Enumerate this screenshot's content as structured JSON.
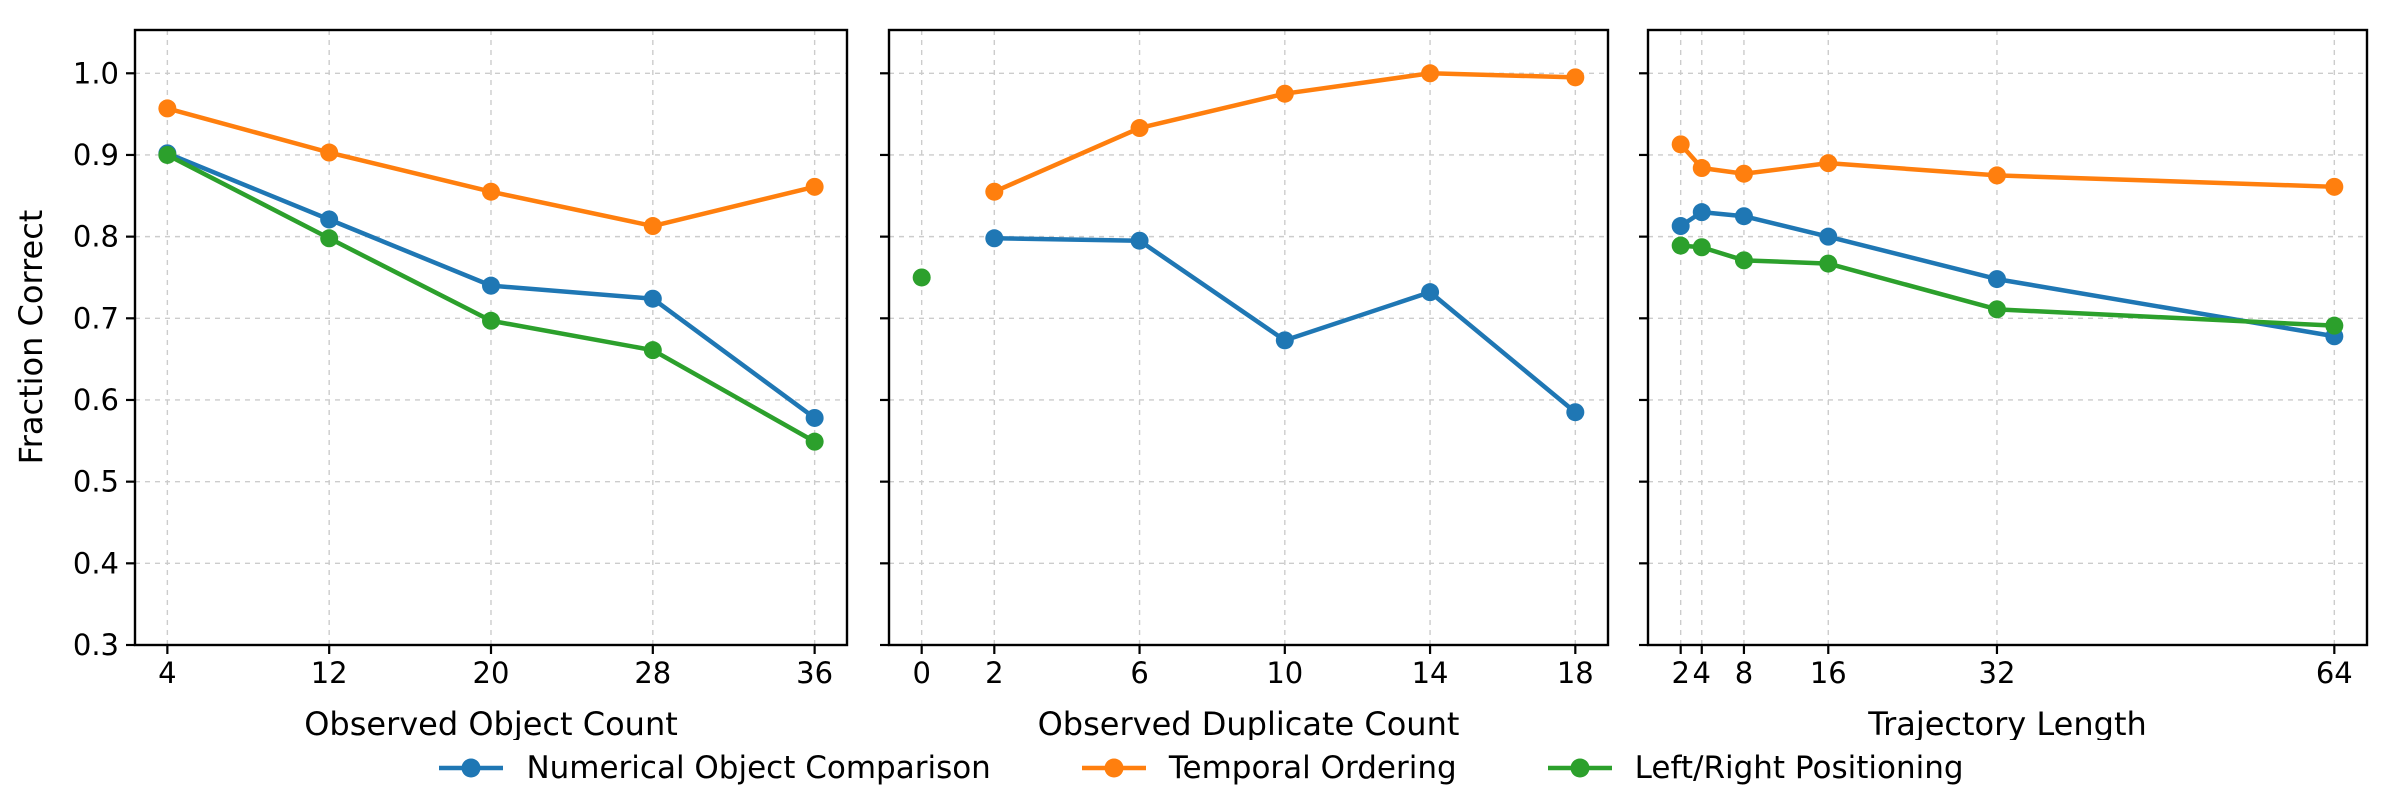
{
  "figure": {
    "ylabel": "Fraction Correct",
    "background_color": "#ffffff",
    "axis_color": "#000000",
    "grid_color": "#cccccc",
    "text_color": "#000000"
  },
  "legend": {
    "position": "bottom center",
    "items": [
      {
        "label": "Numerical Object Comparison",
        "color": "#1f77b4",
        "marker": "circle"
      },
      {
        "label": "Temporal Ordering",
        "color": "#ff7f0e",
        "marker": "circle"
      },
      {
        "label": "Left/Right Positioning",
        "color": "#2ca02c",
        "marker": "circle"
      }
    ]
  },
  "chart_data": [
    {
      "type": "line",
      "title": "",
      "xlabel": "Observed Object Count",
      "ylabel": "Fraction Correct",
      "xticks": [
        4,
        12,
        20,
        28,
        36
      ],
      "yticks": [
        1.0,
        0.9,
        0.8,
        0.7,
        0.6,
        0.5,
        0.4,
        0.3
      ],
      "xlim": [
        2.4,
        37.6
      ],
      "ylim": [
        0.3,
        1.053
      ],
      "grid": true,
      "show_ytick_labels": true,
      "series": [
        {
          "name": "Numerical Object Comparison",
          "color": "#1f77b4",
          "marker": "circle",
          "x": [
            4,
            12,
            20,
            28,
            36
          ],
          "y": [
            0.902,
            0.821,
            0.74,
            0.724,
            0.578
          ]
        },
        {
          "name": "Temporal Ordering",
          "color": "#ff7f0e",
          "marker": "circle",
          "x": [
            4,
            12,
            20,
            28,
            36
          ],
          "y": [
            0.957,
            0.903,
            0.855,
            0.813,
            0.861
          ]
        },
        {
          "name": "Left/Right Positioning",
          "color": "#2ca02c",
          "marker": "circle",
          "x": [
            4,
            12,
            20,
            28,
            36
          ],
          "y": [
            0.9,
            0.798,
            0.697,
            0.661,
            0.549
          ]
        }
      ]
    },
    {
      "type": "line",
      "title": "",
      "xlabel": "Observed Duplicate Count",
      "ylabel": "",
      "xticks": [
        0,
        2,
        6,
        10,
        14,
        18
      ],
      "yticks": [
        1.0,
        0.9,
        0.8,
        0.7,
        0.6,
        0.5,
        0.4,
        0.3
      ],
      "xlim": [
        -0.9,
        18.9
      ],
      "ylim": [
        0.3,
        1.053
      ],
      "grid": true,
      "show_ytick_labels": false,
      "series": [
        {
          "name": "Numerical Object Comparison",
          "color": "#1f77b4",
          "marker": "circle",
          "x": [
            2,
            6,
            10,
            14,
            18
          ],
          "y": [
            0.798,
            0.795,
            0.673,
            0.732,
            0.585
          ]
        },
        {
          "name": "Temporal Ordering",
          "color": "#ff7f0e",
          "marker": "circle",
          "x": [
            2,
            6,
            10,
            14,
            18
          ],
          "y": [
            0.855,
            0.933,
            0.975,
            1.0,
            0.995
          ]
        },
        {
          "name": "Left/Right Positioning",
          "color": "#2ca02c",
          "marker": "circle",
          "x": [
            0
          ],
          "y": [
            0.75
          ]
        }
      ]
    },
    {
      "type": "line",
      "title": "",
      "xlabel": "Trajectory Length",
      "ylabel": "",
      "xticks": [
        2,
        4,
        8,
        16,
        32,
        64
      ],
      "yticks": [
        1.0,
        0.9,
        0.8,
        0.7,
        0.6,
        0.5,
        0.4,
        0.3
      ],
      "xlim": [
        -1.1,
        67.1
      ],
      "ylim": [
        0.3,
        1.053
      ],
      "grid": true,
      "show_ytick_labels": false,
      "series": [
        {
          "name": "Numerical Object Comparison",
          "color": "#1f77b4",
          "marker": "circle",
          "x": [
            2,
            4,
            8,
            16,
            32,
            64
          ],
          "y": [
            0.813,
            0.83,
            0.825,
            0.8,
            0.748,
            0.678
          ]
        },
        {
          "name": "Temporal Ordering",
          "color": "#ff7f0e",
          "marker": "circle",
          "x": [
            2,
            4,
            8,
            16,
            32,
            64
          ],
          "y": [
            0.913,
            0.884,
            0.877,
            0.89,
            0.875,
            0.861
          ]
        },
        {
          "name": "Left/Right Positioning",
          "color": "#2ca02c",
          "marker": "circle",
          "x": [
            2,
            4,
            8,
            16,
            32,
            64
          ],
          "y": [
            0.789,
            0.787,
            0.771,
            0.767,
            0.711,
            0.691
          ]
        }
      ]
    }
  ]
}
